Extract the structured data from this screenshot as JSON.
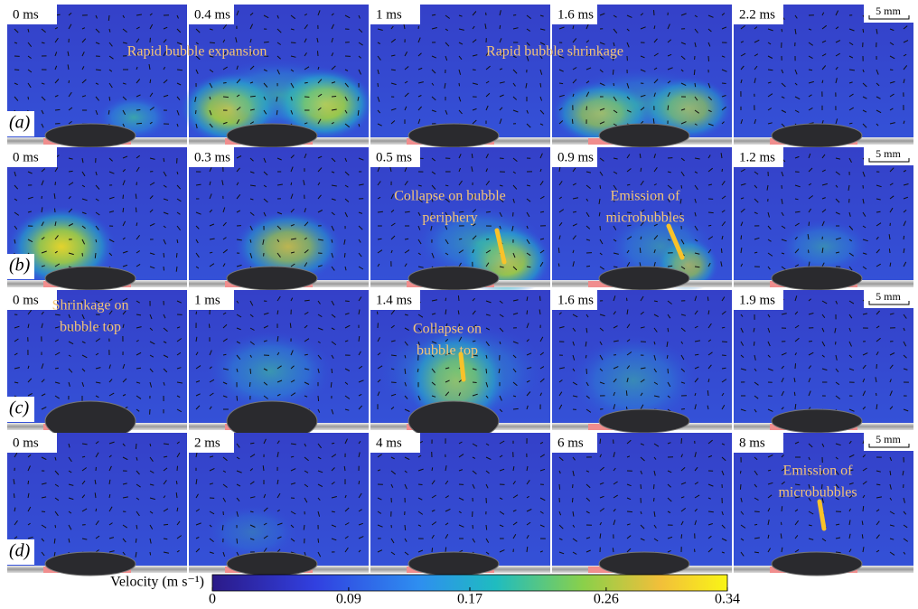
{
  "scale_bar": "5 mm",
  "rows": [
    {
      "label": "(a)",
      "panels": [
        {
          "time": "0 ms"
        },
        {
          "time": "0.4 ms"
        },
        {
          "time": "1 ms"
        },
        {
          "time": "1.6 ms"
        },
        {
          "time": "2.2 ms"
        }
      ]
    },
    {
      "label": "(b)",
      "panels": [
        {
          "time": "0 ms"
        },
        {
          "time": "0.3 ms"
        },
        {
          "time": "0.5 ms"
        },
        {
          "time": "0.9 ms"
        },
        {
          "time": "1.2 ms"
        }
      ]
    },
    {
      "label": "(c)",
      "panels": [
        {
          "time": "0 ms"
        },
        {
          "time": "1 ms"
        },
        {
          "time": "1.4 ms"
        },
        {
          "time": "1.6 ms"
        },
        {
          "time": "1.9 ms"
        }
      ]
    },
    {
      "label": "(d)",
      "panels": [
        {
          "time": "0 ms"
        },
        {
          "time": "2 ms"
        },
        {
          "time": "4 ms"
        },
        {
          "time": "6 ms"
        },
        {
          "time": "8 ms"
        }
      ]
    }
  ],
  "annotations": [
    {
      "lines": [
        "Rapid bubble expansion"
      ]
    },
    {
      "lines": [
        "Rapid bubble shrinkage"
      ]
    },
    {
      "lines": [
        "Collapse on bubble",
        "periphery"
      ]
    },
    {
      "lines": [
        "Emission of",
        "microbubbles"
      ]
    },
    {
      "lines": [
        "Shrinkage on",
        "bubble top"
      ]
    },
    {
      "lines": [
        "Collapse on",
        "bubble top"
      ]
    },
    {
      "lines": [
        "Emission of",
        "microbubbles"
      ]
    }
  ],
  "colorbar": {
    "label": "Velocity (m s⁻¹)",
    "ticks": [
      0,
      0.09,
      0.17,
      0.26,
      0.34
    ]
  }
}
